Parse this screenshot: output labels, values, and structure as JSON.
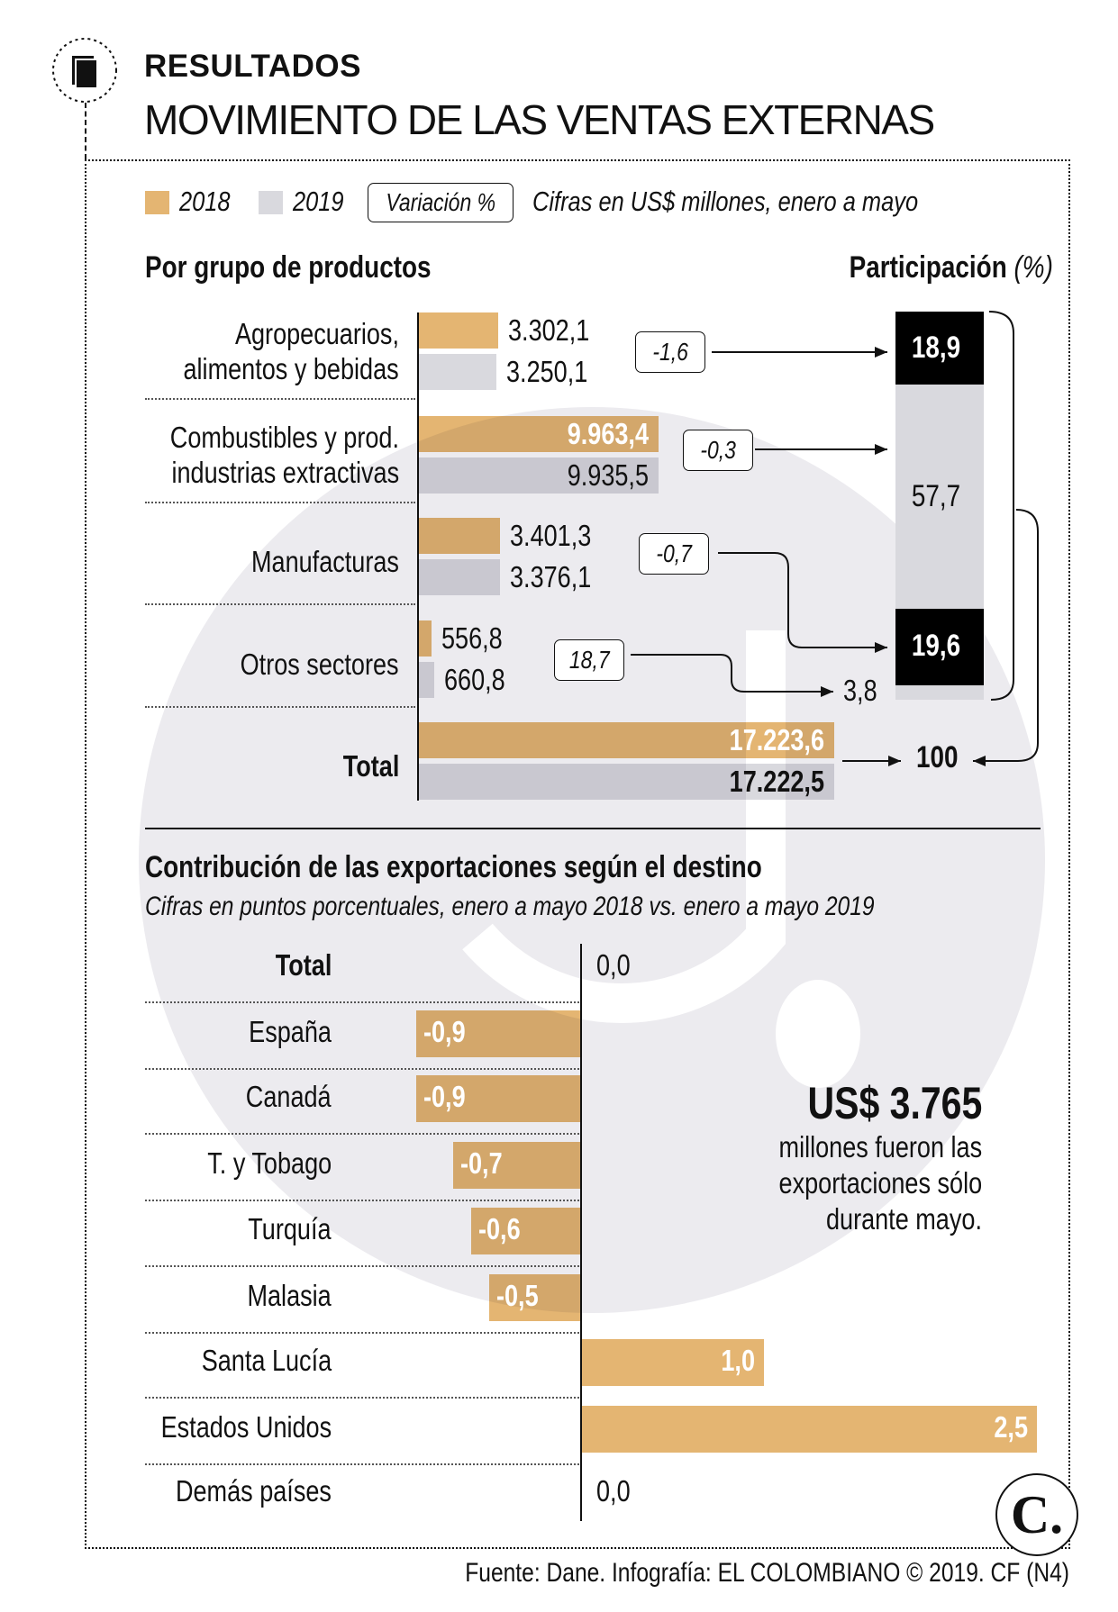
{
  "header": {
    "kicker": "RESULTADOS",
    "title": "MOVIMIENTO DE LAS VENTAS EXTERNAS",
    "icon": "document-icon"
  },
  "legend": {
    "y2018": "2018",
    "y2019": "2019",
    "variation": "Variación %",
    "note": "Cifras en US$ millones, enero a mayo"
  },
  "colors": {
    "y2018": "#e4b572",
    "y2019": "#d9d9de",
    "dark": "#000000",
    "watermark": "#ecebef"
  },
  "chart_data": [
    {
      "type": "bar",
      "title": "Por grupo de productos",
      "categories": [
        "Agropecuarios, alimentos y bebidas",
        "Combustibles y prod. industrias extractivas",
        "Manufacturas",
        "Otros sectores",
        "Total"
      ],
      "series": [
        {
          "name": "2018",
          "values": [
            3302.1,
            9963.4,
            3401.3,
            556.8,
            17223.6
          ],
          "labels": [
            "3.302,1",
            "9.963,4",
            "3.401,3",
            "556,8",
            "17.223,6"
          ]
        },
        {
          "name": "2019",
          "values": [
            3250.1,
            9935.5,
            3376.1,
            660.8,
            17222.5
          ],
          "labels": [
            "3.250,1",
            "9.935,5",
            "3.376,1",
            "660,8",
            "17.222,5"
          ]
        }
      ],
      "variation_labels": [
        "-1,6",
        "-0,3",
        "-0,7",
        "18,7"
      ],
      "category_lines": [
        [
          "Agropecuarios,",
          "alimentos y bebidas"
        ],
        [
          "Combustibles y prod.",
          "industrias extractivas"
        ],
        [
          "Manufacturas"
        ],
        [
          "Otros sectores"
        ],
        [
          "Total"
        ]
      ]
    },
    {
      "type": "bar",
      "title": "Participación",
      "title_suffix": "(%)",
      "stacked": true,
      "values": [
        18.9,
        57.7,
        19.6,
        3.8
      ],
      "labels": [
        "18,9",
        "57,7",
        "19,6",
        "3,8"
      ],
      "total_label": "100"
    },
    {
      "type": "bar",
      "orientation": "horizontal",
      "title": "Contribución de las exportaciones según el destino",
      "subtitle": "Cifras en puntos porcentuales, enero a mayo 2018 vs. enero a mayo 2019",
      "categories": [
        "Total",
        "España",
        "Canadá",
        "T. y Tobago",
        "Turquía",
        "Malasia",
        "Santa Lucía",
        "Estados Unidos",
        "Demás países"
      ],
      "values": [
        0.0,
        -0.9,
        -0.9,
        -0.7,
        -0.6,
        -0.5,
        1.0,
        2.5,
        0.0
      ],
      "labels": [
        "0,0",
        "-0,9",
        "-0,9",
        "-0,7",
        "-0,6",
        "-0,5",
        "1,0",
        "2,5",
        "0,0"
      ]
    }
  ],
  "callout": {
    "amount": "US$ 3.765",
    "text": [
      "millones fueron las",
      "exportaciones sólo",
      "durante mayo."
    ]
  },
  "logo": "C.",
  "footer": "Fuente: Dane. Infografía: EL COLOMBIANO © 2019. CF (N4)"
}
